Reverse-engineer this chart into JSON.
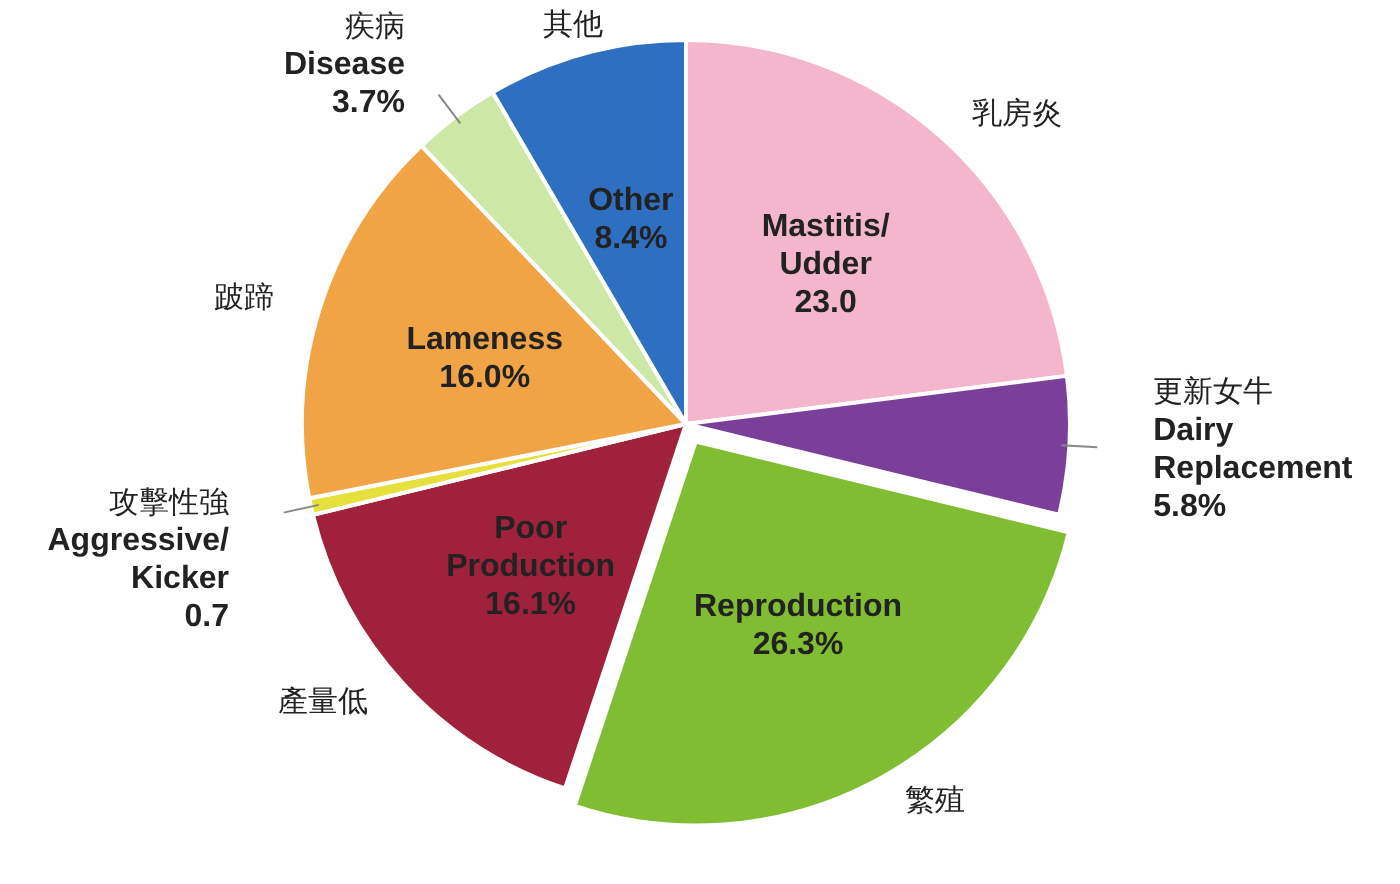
{
  "chart_data": {
    "type": "pie",
    "categories": [
      "Mastitis/Udder",
      "Dairy Replacement",
      "Reproduction",
      "Poor Production",
      "Aggressive/Kicker",
      "Lameness",
      "Disease",
      "Other"
    ],
    "values": [
      23.0,
      5.8,
      26.3,
      16.1,
      0.7,
      16.0,
      3.7,
      8.4
    ],
    "value_labels": [
      "23.0",
      "5.8%",
      "26.3%",
      "16.1%",
      "0.7",
      "16.0%",
      "3.7%",
      "8.4%"
    ],
    "colors": [
      "#f4b6cc",
      "#7a3f98",
      "#80bd32",
      "#a0213b",
      "#e6e03c",
      "#f0a445",
      "#cde8a6",
      "#2f6fc2"
    ],
    "annotations": [
      "乳房炎",
      "更新女牛",
      "繁殖",
      "產量低",
      "攻擊性強",
      "跛蹄",
      "疾病",
      "其他"
    ]
  }
}
